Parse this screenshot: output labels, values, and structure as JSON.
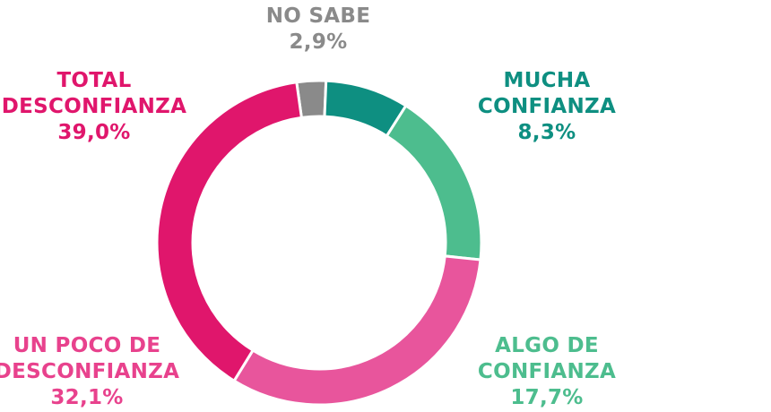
{
  "chart_data": {
    "type": "pie",
    "donut": true,
    "categories": [
      "NO SABE",
      "MUCHA CONFIANZA",
      "ALGO DE CONFIANZA",
      "UN POCO DE DESCONFIANZA",
      "TOTAL DESCONFIANZA"
    ],
    "values": [
      2.9,
      8.3,
      17.7,
      32.1,
      39.0
    ],
    "value_labels": [
      "2,9%",
      "8,3%",
      "17,7%",
      "32,1%",
      "39,0%"
    ],
    "colors": [
      "#8a8a8a",
      "#0e8f81",
      "#4dbd8e",
      "#e8559c",
      "#e0166c"
    ],
    "start_angle_deg": -8
  },
  "labels": {
    "no_sabe": {
      "line1": "NO SABE",
      "value": "2,9%"
    },
    "mucha": {
      "line1": "MUCHA",
      "line2": "CONFIANZA",
      "value": "8,3%"
    },
    "algo": {
      "line1": "ALGO DE",
      "line2": "CONFIANZA",
      "value": "17,7%"
    },
    "poco": {
      "line1": "UN POCO DE",
      "line2": "DESCONFIANZA",
      "value": "32,1%"
    },
    "total": {
      "line1": "TOTAL",
      "line2": "DESCONFIANZA",
      "value": "39,0%"
    }
  }
}
